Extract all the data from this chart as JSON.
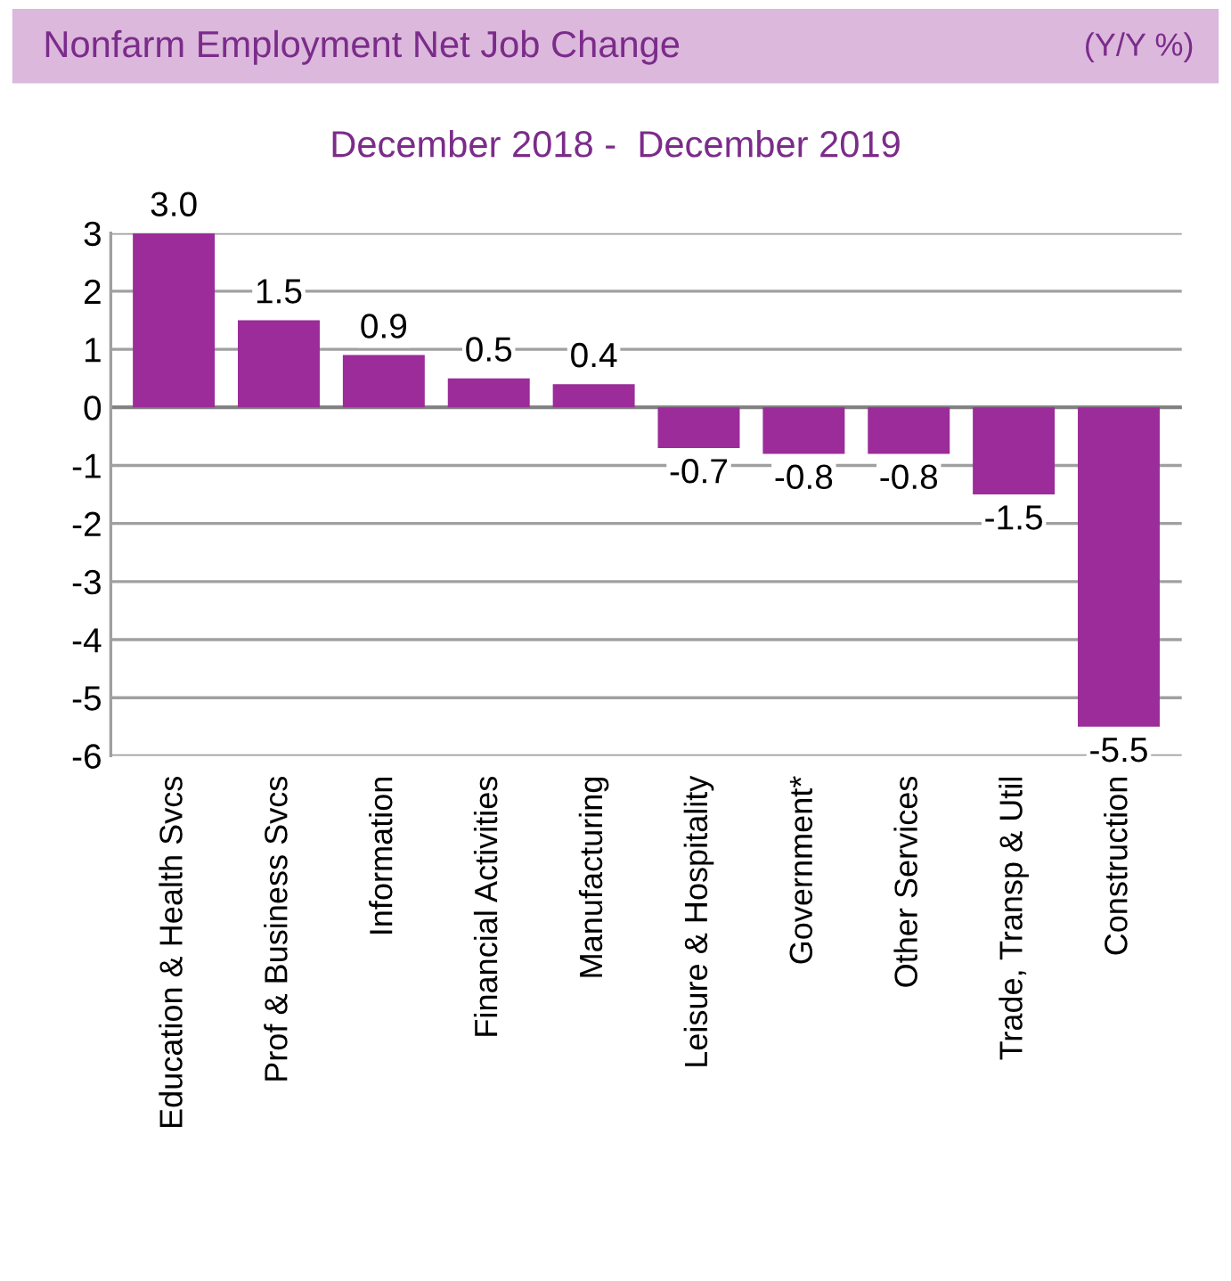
{
  "chart_data": {
    "type": "bar",
    "title": "Nonfarm Employment Net Job Change",
    "subtitle": "December 2018 -  December 2019",
    "annotations": [
      "(Y/Y %)"
    ],
    "categories": [
      "Education & Health Svcs",
      "Prof & Business Svcs",
      "Information",
      "Financial Activities",
      "Manufacturing",
      "Leisure & Hospitality",
      "Government*",
      "Other Services",
      "Trade, Transp & Util",
      "Construction"
    ],
    "values": [
      3.0,
      1.5,
      0.9,
      0.5,
      0.4,
      -0.7,
      -0.8,
      -0.8,
      -1.5,
      -5.5
    ],
    "color": "#9b2c99",
    "ylim": [
      -6,
      3
    ],
    "yticks": [
      -6,
      -5,
      -4,
      -3,
      -2,
      -1,
      0,
      1,
      2,
      3
    ],
    "value_labels": [
      "3.0",
      "1.5",
      "0.9",
      "0.5",
      "0.4",
      "-0.7",
      "-0.8",
      "-0.8",
      "-1.5",
      "-5.5"
    ],
    "grid": "y"
  }
}
